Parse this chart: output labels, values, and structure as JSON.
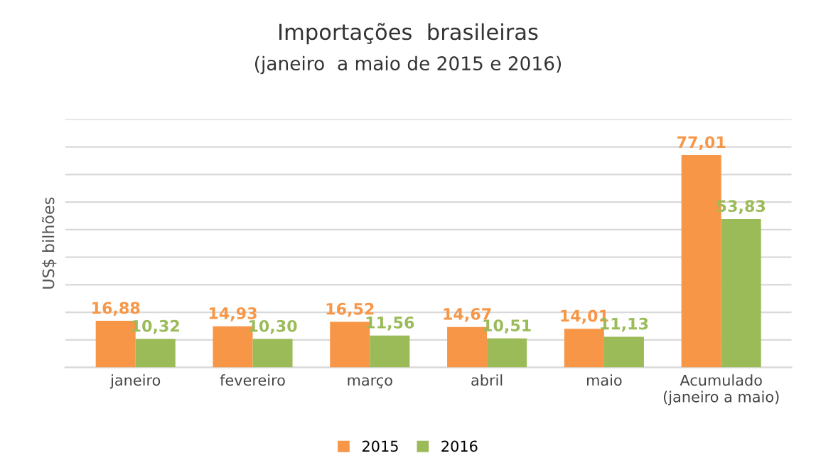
{
  "chart_data": {
    "type": "bar",
    "title": "Importações  brasileiras",
    "subtitle": "(janeiro  a maio de 2015 e 2016)",
    "ylabel": "US$ bilhões",
    "categories": [
      "janeiro",
      "fevereiro",
      "março",
      "abril",
      "maio",
      "Acumulado\n(janeiro a maio)"
    ],
    "series": [
      {
        "name": "2015",
        "color": "#f79646",
        "values": [
          16.88,
          14.93,
          16.52,
          14.67,
          14.01,
          77.01
        ],
        "value_labels": [
          "16,88",
          "14,93",
          "16,52",
          "14,67",
          "14,01",
          "77,01"
        ]
      },
      {
        "name": "2016",
        "color": "#9bbb59",
        "values": [
          10.32,
          10.3,
          11.56,
          10.51,
          11.13,
          53.83
        ],
        "value_labels": [
          "10,32",
          "10,30",
          "11,56",
          "10,51",
          "11,13",
          "53,83"
        ]
      }
    ],
    "ylim": [
      0,
      90
    ],
    "yticks": [
      {
        "value": 0,
        "label": null
      },
      {
        "value": 10,
        "label": null
      },
      {
        "value": 20,
        "label": null
      },
      {
        "value": 30,
        "label": null
      },
      {
        "value": 40,
        "label": null
      },
      {
        "value": 50,
        "label": null
      },
      {
        "value": 60,
        "label": null
      },
      {
        "value": 70,
        "label": null
      },
      {
        "value": 80,
        "label": null
      },
      {
        "value": 90,
        "label": null
      }
    ],
    "tick_labels": "x",
    "grid": "y",
    "legend": "bottom"
  }
}
